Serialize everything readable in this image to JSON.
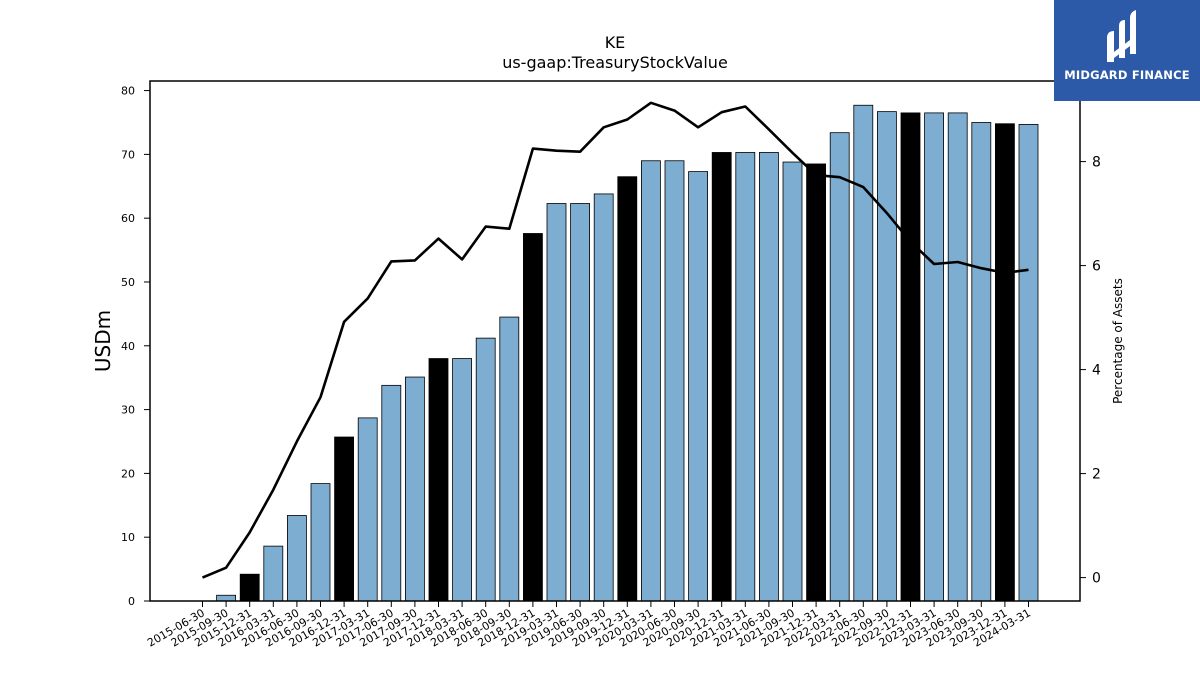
{
  "colors": {
    "bar_normal": "#7eadd2",
    "bar_highlight": "#000000",
    "line": "#000000",
    "logo_bg": "#2d5aa8"
  },
  "logo": {
    "text": "MIDGARD FINANCE",
    "icon": "midgard-logo-icon"
  },
  "chart_data": {
    "type": "bar",
    "title": "KE",
    "subtitle": "us-gaap:TreasuryStockValue",
    "ylabel": "USDm",
    "y2label": "Percentage of Assets",
    "ylim": [
      0,
      81.5
    ],
    "y2lim": [
      -0.45,
      9.55
    ],
    "yticks": [
      0,
      10,
      20,
      30,
      40,
      50,
      60,
      70,
      80
    ],
    "y2ticks": [
      0,
      2,
      4,
      6,
      8
    ],
    "grid": false,
    "categories": [
      "2015-06-30",
      "2015-09-30",
      "2015-12-31",
      "2016-03-31",
      "2016-06-30",
      "2016-09-30",
      "2016-12-31",
      "2017-03-31",
      "2017-06-30",
      "2017-09-30",
      "2017-12-31",
      "2018-03-31",
      "2018-06-30",
      "2018-09-30",
      "2018-12-31",
      "2019-03-31",
      "2019-06-30",
      "2019-09-30",
      "2019-12-31",
      "2020-03-31",
      "2020-06-30",
      "2020-09-30",
      "2020-12-31",
      "2021-03-31",
      "2021-06-30",
      "2021-09-30",
      "2021-12-31",
      "2022-03-31",
      "2022-06-30",
      "2022-09-30",
      "2022-12-31",
      "2023-03-31",
      "2023-06-30",
      "2023-09-30",
      "2023-12-31",
      "2024-03-31"
    ],
    "series": [
      {
        "kind": "bar",
        "axis": "left",
        "values": [
          0,
          0.9,
          4.2,
          8.6,
          13.4,
          18.4,
          25.7,
          28.7,
          33.8,
          35.1,
          38.0,
          38.0,
          41.2,
          44.5,
          57.6,
          62.3,
          62.3,
          63.8,
          66.5,
          69.0,
          69.0,
          67.3,
          70.3,
          70.3,
          70.3,
          68.8,
          68.5,
          73.4,
          77.7,
          76.7,
          76.5,
          76.5,
          76.5,
          75.0,
          74.8,
          74.7
        ],
        "highlight": [
          false,
          false,
          true,
          false,
          false,
          false,
          true,
          false,
          false,
          false,
          true,
          false,
          false,
          false,
          true,
          false,
          false,
          false,
          true,
          false,
          false,
          false,
          true,
          false,
          false,
          false,
          true,
          false,
          false,
          false,
          true,
          false,
          false,
          false,
          true,
          false
        ]
      },
      {
        "kind": "line",
        "axis": "right",
        "values": [
          0.0,
          0.19,
          0.87,
          1.69,
          2.62,
          3.47,
          4.92,
          5.37,
          6.08,
          6.1,
          6.52,
          6.12,
          6.75,
          6.71,
          8.25,
          8.21,
          8.19,
          8.66,
          8.81,
          9.13,
          8.98,
          8.66,
          8.95,
          9.06,
          8.62,
          8.17,
          7.74,
          7.7,
          7.51,
          7.01,
          6.46,
          6.03,
          6.07,
          5.95,
          5.86,
          5.92
        ]
      }
    ]
  }
}
